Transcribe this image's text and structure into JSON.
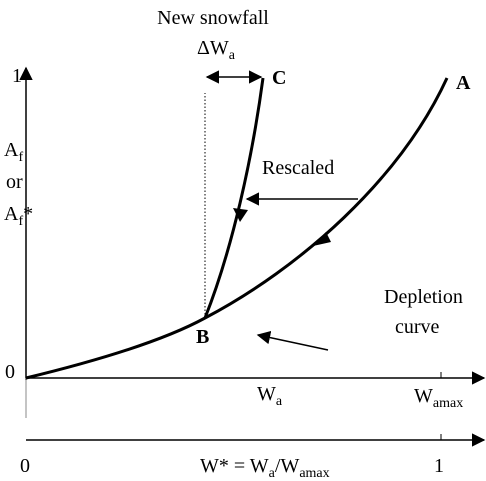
{
  "header": {
    "title": "New snowfall"
  },
  "labels": {
    "delta": {
      "base": "ΔW",
      "sub": "a"
    },
    "point_c": "C",
    "point_a": "A",
    "point_b": "B",
    "rescaled": "Rescaled",
    "depletion": [
      "Depletion",
      "curve"
    ]
  },
  "y_axis": {
    "max": "1",
    "min": "0",
    "label_top": {
      "base": "A",
      "sub": "f"
    },
    "label_mid": "or",
    "label_bottom": {
      "base": "A",
      "sub": "f",
      "suffix": "*"
    }
  },
  "x_axis": {
    "label": {
      "base": "W",
      "sub": "a"
    },
    "max_label": {
      "base": "W",
      "sub": "amax"
    }
  },
  "x2_axis": {
    "min": "0",
    "max": "1",
    "label": {
      "base": "W* = W",
      "sub": "a",
      "mid": "/W",
      "sub2": "amax"
    }
  }
}
